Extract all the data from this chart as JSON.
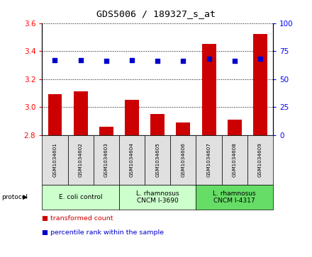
{
  "title": "GDS5006 / 189327_s_at",
  "samples": [
    "GSM1034601",
    "GSM1034602",
    "GSM1034603",
    "GSM1034604",
    "GSM1034605",
    "GSM1034606",
    "GSM1034607",
    "GSM1034608",
    "GSM1034609"
  ],
  "transformed_count": [
    3.09,
    3.11,
    2.86,
    3.05,
    2.95,
    2.89,
    3.45,
    2.91,
    3.52
  ],
  "percentile_rank": [
    67,
    67,
    66,
    67,
    66,
    66,
    68,
    66,
    68
  ],
  "ylim_left": [
    2.8,
    3.6
  ],
  "ylim_right": [
    0,
    100
  ],
  "yticks_left": [
    2.8,
    3.0,
    3.2,
    3.4,
    3.6
  ],
  "yticks_right": [
    0,
    25,
    50,
    75,
    100
  ],
  "bar_color": "#cc0000",
  "dot_color": "#0000cc",
  "bar_width": 0.55,
  "groups": [
    {
      "label": "E. coli control",
      "indices": [
        0,
        1,
        2
      ],
      "color": "#ccffcc"
    },
    {
      "label": "L. rhamnosus\nCNCM I-3690",
      "indices": [
        3,
        4,
        5
      ],
      "color": "#ccffcc"
    },
    {
      "label": "L. rhamnosus\nCNCM I-4317",
      "indices": [
        6,
        7,
        8
      ],
      "color": "#66dd66"
    }
  ],
  "legend_items": [
    {
      "label": "transformed count",
      "color": "#cc0000"
    },
    {
      "label": "percentile rank within the sample",
      "color": "#0000cc"
    }
  ],
  "protocol_label": "protocol",
  "grid_color": "#000000",
  "plot_bg": "#ffffff",
  "sample_box_color": "#e0e0e0"
}
